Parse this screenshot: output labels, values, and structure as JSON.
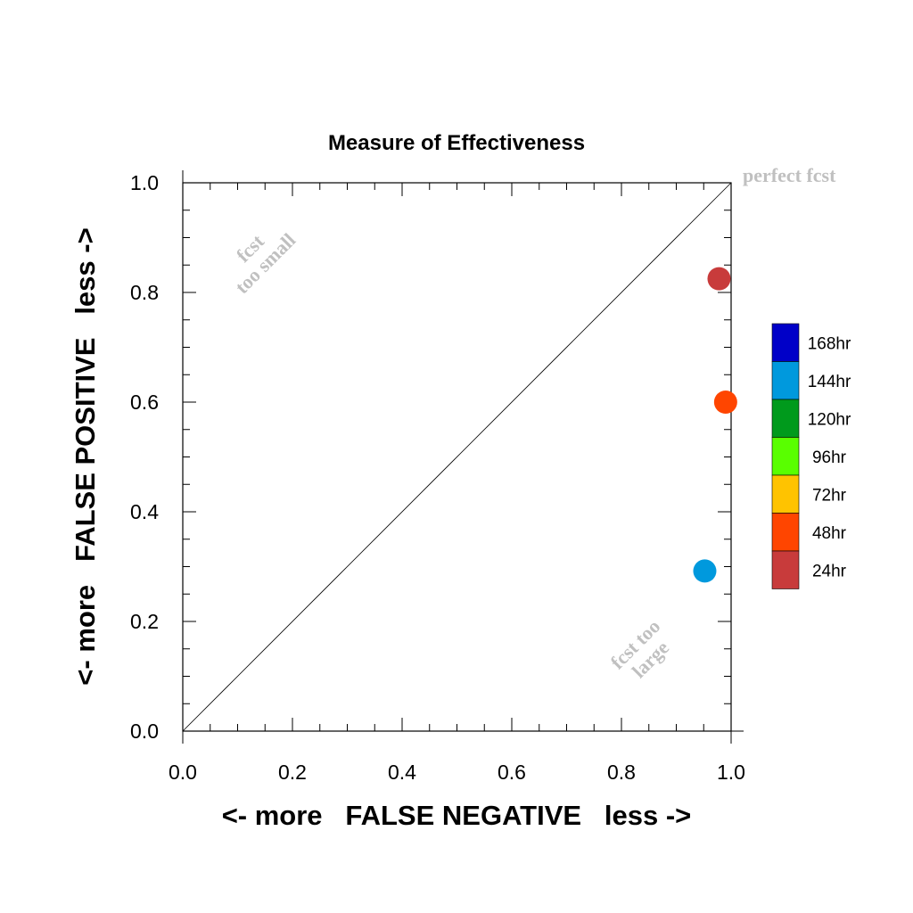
{
  "chart_data": {
    "type": "scatter",
    "title": "Measure of Effectiveness",
    "xlabel": "<- more   FALSE NEGATIVE   less ->",
    "ylabel": "<- more   FALSE POSITIVE   less ->",
    "xlim": [
      0.0,
      1.0
    ],
    "ylim": [
      0.0,
      1.0
    ],
    "xticks": [
      "0.0",
      "0.2",
      "0.4",
      "0.6",
      "0.8",
      "1.0"
    ],
    "yticks": [
      "0.0",
      "0.2",
      "0.4",
      "0.6",
      "0.8",
      "1.0"
    ],
    "grid": false,
    "reference_line": {
      "from": [
        0,
        0
      ],
      "to": [
        1,
        1
      ]
    },
    "annotations": {
      "perfect": "perfect fcst",
      "small_line1": "fcst",
      "small_line2": "too small",
      "large_line1": "fcst too",
      "large_line2": "large"
    },
    "points": [
      {
        "label": "24hr",
        "x": 0.978,
        "y": 0.825,
        "color": "#c83b3b"
      },
      {
        "label": "48hr",
        "x": 0.99,
        "y": 0.6,
        "color": "#ff4500"
      },
      {
        "label": "144hr",
        "x": 0.952,
        "y": 0.292,
        "color": "#0099dd"
      }
    ],
    "legend": {
      "placement": "right",
      "entries": [
        {
          "label": "168hr",
          "color": "#0000c8"
        },
        {
          "label": "144hr",
          "color": "#0099dd"
        },
        {
          "label": "120hr",
          "color": "#009a1c"
        },
        {
          "label": "96hr",
          "color": "#59ff00"
        },
        {
          "label": "72hr",
          "color": "#ffc300"
        },
        {
          "label": "48hr",
          "color": "#ff4500"
        },
        {
          "label": "24hr",
          "color": "#c83b3b"
        }
      ]
    }
  }
}
